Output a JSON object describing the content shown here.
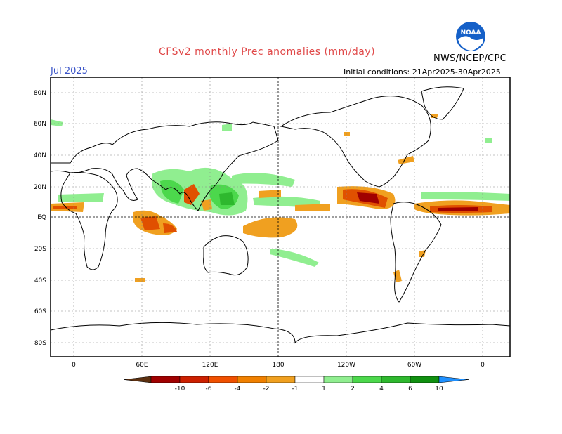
{
  "header": {
    "title": "CFSv2 monthly Prec anomalies (mm/day)",
    "month": "Jul 2025",
    "initial_conditions": "Initial conditions: 21Apr2025-30Apr2025",
    "agency": "NWS/NCEP/CPC",
    "logo_text": "NOAA"
  },
  "axes": {
    "lat_labels": [
      "80N",
      "60N",
      "40N",
      "20N",
      "EQ",
      "20S",
      "40S",
      "60S",
      "80S"
    ],
    "lon_labels": [
      "0",
      "60E",
      "120E",
      "180",
      "120W",
      "60W",
      "0"
    ]
  },
  "colorbar": {
    "labels": [
      "-10",
      "-6",
      "-4",
      "-2",
      "-1",
      "1",
      "2",
      "4",
      "6",
      "10"
    ],
    "colors": [
      "#5c3010",
      "#a00000",
      "#cc2000",
      "#f05000",
      "#f08000",
      "#f0a020",
      "#ffffff",
      "#90ee90",
      "#4cd84c",
      "#2eb82e",
      "#109010",
      "#1e90ff"
    ]
  },
  "colors": {
    "dry": "#f0a020",
    "dry_strong": "#e05000",
    "wet": "#60d860",
    "wet_strong": "#20a030"
  }
}
